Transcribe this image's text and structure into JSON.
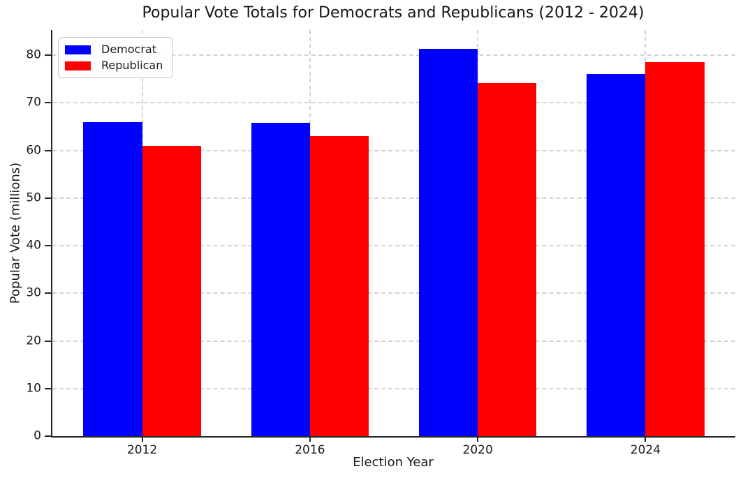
{
  "chart_data": {
    "type": "bar",
    "title": "Popular Vote Totals for Democrats and Republicans (2012 - 2024)",
    "xlabel": "Election Year",
    "ylabel": "Popular Vote (millions)",
    "categories": [
      "2012",
      "2016",
      "2020",
      "2024"
    ],
    "series": [
      {
        "name": "Democrat",
        "color": "#0000ff",
        "values": [
          65.9,
          65.8,
          81.3,
          76.0
        ]
      },
      {
        "name": "Republican",
        "color": "#ff0000",
        "values": [
          60.9,
          63.0,
          74.2,
          78.5
        ]
      }
    ],
    "ylim": [
      0,
      85.3
    ],
    "yticks": [
      0,
      10,
      20,
      30,
      40,
      50,
      60,
      70,
      80
    ],
    "grid": {
      "horizontal": true,
      "vertical": true,
      "style": "dashed",
      "color": "#d4d4d4"
    },
    "legend_position": "upper-left",
    "bar_width_data_units": 0.35,
    "axis_color": "#262626",
    "text_color": "#1a1a1a",
    "background_color": "#ffffff"
  }
}
